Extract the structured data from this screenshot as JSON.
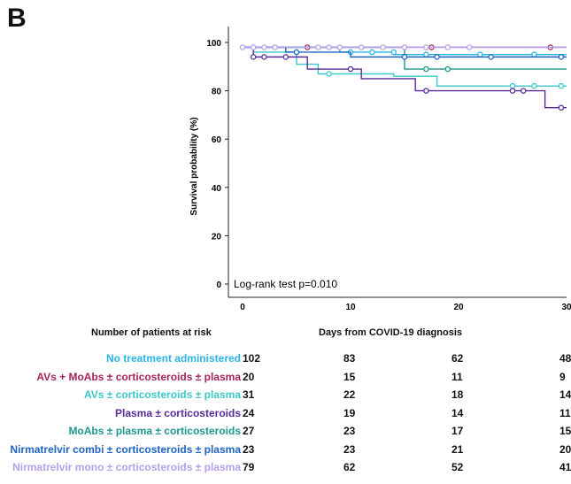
{
  "panel_letter": "B",
  "chart_data": {
    "type": "line",
    "subtype": "kaplan-meier",
    "ylabel": "Survival probability (%)",
    "xlabel": "Days from COVID-19 diagnosis",
    "xlim": [
      0,
      30
    ],
    "ylim": [
      0,
      100
    ],
    "xticks": [
      0,
      10,
      20,
      30
    ],
    "yticks": [
      0,
      20,
      40,
      60,
      80,
      100
    ],
    "grid": false,
    "annotation": "Log-rank test p=0.010",
    "series": [
      {
        "name": "No treatment administered",
        "color": "#2ab5e8",
        "steps": [
          [
            0,
            98
          ],
          [
            9,
            98
          ],
          [
            9,
            96
          ],
          [
            14,
            96
          ],
          [
            14,
            95
          ],
          [
            30,
            95
          ]
        ],
        "censors": [
          [
            10,
            96
          ],
          [
            12,
            96
          ],
          [
            14,
            96
          ],
          [
            17,
            95
          ],
          [
            22,
            95
          ],
          [
            27,
            95
          ]
        ]
      },
      {
        "name": "AVs + MoAbs ± corticosteroids ± plasma",
        "color": "#a3245c",
        "steps": [
          [
            0,
            98
          ],
          [
            30,
            98
          ]
        ],
        "censors": [
          [
            6,
            98
          ],
          [
            17.5,
            98
          ],
          [
            28.5,
            98
          ]
        ]
      },
      {
        "name": "AVs ± corticosteroids ± plasma",
        "color": "#3cc8c8",
        "steps": [
          [
            0,
            98
          ],
          [
            1,
            98
          ],
          [
            1,
            96
          ],
          [
            5,
            96
          ],
          [
            5,
            91
          ],
          [
            7,
            91
          ],
          [
            7,
            87
          ],
          [
            14,
            87
          ],
          [
            14,
            86
          ],
          [
            18,
            86
          ],
          [
            18,
            82
          ],
          [
            30,
            82
          ]
        ],
        "censors": [
          [
            3,
            98
          ],
          [
            8,
            87
          ],
          [
            25,
            82
          ],
          [
            27,
            82
          ],
          [
            29.5,
            82
          ]
        ]
      },
      {
        "name": "Plasma ± corticosteroids",
        "color": "#5a2a9a",
        "steps": [
          [
            0,
            98
          ],
          [
            1,
            98
          ],
          [
            1,
            94
          ],
          [
            6,
            94
          ],
          [
            6,
            89
          ],
          [
            11,
            89
          ],
          [
            11,
            85
          ],
          [
            16,
            85
          ],
          [
            16,
            80
          ],
          [
            28,
            80
          ],
          [
            28,
            73
          ],
          [
            30,
            73
          ]
        ],
        "censors": [
          [
            1,
            94
          ],
          [
            2,
            94
          ],
          [
            4,
            94
          ],
          [
            10,
            89
          ],
          [
            17,
            80
          ],
          [
            25,
            80
          ],
          [
            26,
            80
          ],
          [
            29.5,
            73
          ]
        ]
      },
      {
        "name": "MoAbs ± plasma ± corticosteroids",
        "color": "#1e9690",
        "steps": [
          [
            0,
            98
          ],
          [
            15,
            98
          ],
          [
            15,
            89
          ],
          [
            30,
            89
          ]
        ],
        "censors": [
          [
            17,
            89
          ],
          [
            19,
            89
          ]
        ]
      },
      {
        "name": "Nirmatrelvir combi ± corticosteroids ± plasma",
        "color": "#1f63c4",
        "steps": [
          [
            0,
            98
          ],
          [
            4,
            98
          ],
          [
            4,
            96
          ],
          [
            10,
            96
          ],
          [
            10,
            94
          ],
          [
            30,
            94
          ]
        ],
        "censors": [
          [
            5,
            96
          ],
          [
            15,
            94
          ],
          [
            18,
            94
          ],
          [
            23,
            94
          ],
          [
            29.5,
            94
          ]
        ]
      },
      {
        "name": "Nirmatrelvir mono ± corticosteroids ± plasma",
        "color": "#b4a0ec",
        "steps": [
          [
            0,
            98
          ],
          [
            30,
            98
          ]
        ],
        "censors": [
          [
            0,
            98
          ],
          [
            1,
            98
          ],
          [
            2,
            98
          ],
          [
            3,
            98
          ],
          [
            7,
            98
          ],
          [
            8,
            98
          ],
          [
            9,
            98
          ],
          [
            11,
            98
          ],
          [
            13,
            98
          ],
          [
            15,
            98
          ],
          [
            17,
            98
          ],
          [
            19,
            98
          ],
          [
            21,
            98
          ]
        ]
      }
    ]
  },
  "risk_table": {
    "title": "Number of patients at risk",
    "xlabel": "Days from COVID-19 diagnosis",
    "columns": [
      0,
      10,
      20,
      30
    ],
    "rows": [
      {
        "label": "No treatment administered",
        "color": "#2ab5e8",
        "values": [
          "102",
          "83",
          "62",
          "48"
        ]
      },
      {
        "label": "AVs + MoAbs ± corticosteroids ± plasma",
        "color": "#a3245c",
        "values": [
          "20",
          "15",
          "11",
          "9"
        ]
      },
      {
        "label": "AVs ± corticosteroids ± plasma",
        "color": "#3cc8c8",
        "values": [
          "31",
          "22",
          "18",
          "14"
        ]
      },
      {
        "label": "Plasma ± corticosteroids",
        "color": "#5a2a9a",
        "values": [
          "24",
          "19",
          "14",
          "11"
        ]
      },
      {
        "label": "MoAbs  ± plasma ± corticosteroids",
        "color": "#1e9690",
        "values": [
          "27",
          "23",
          "17",
          "15"
        ]
      },
      {
        "label": "Nirmatrelvir combi ± corticosteroids ± plasma",
        "color": "#1f63c4",
        "values": [
          "23",
          "23",
          "21",
          "20"
        ]
      },
      {
        "label": "Nirmatrelvir mono ± corticosteroids ± plasma",
        "color": "#b4a0ec",
        "values": [
          "79",
          "62",
          "52",
          "41"
        ]
      }
    ]
  }
}
